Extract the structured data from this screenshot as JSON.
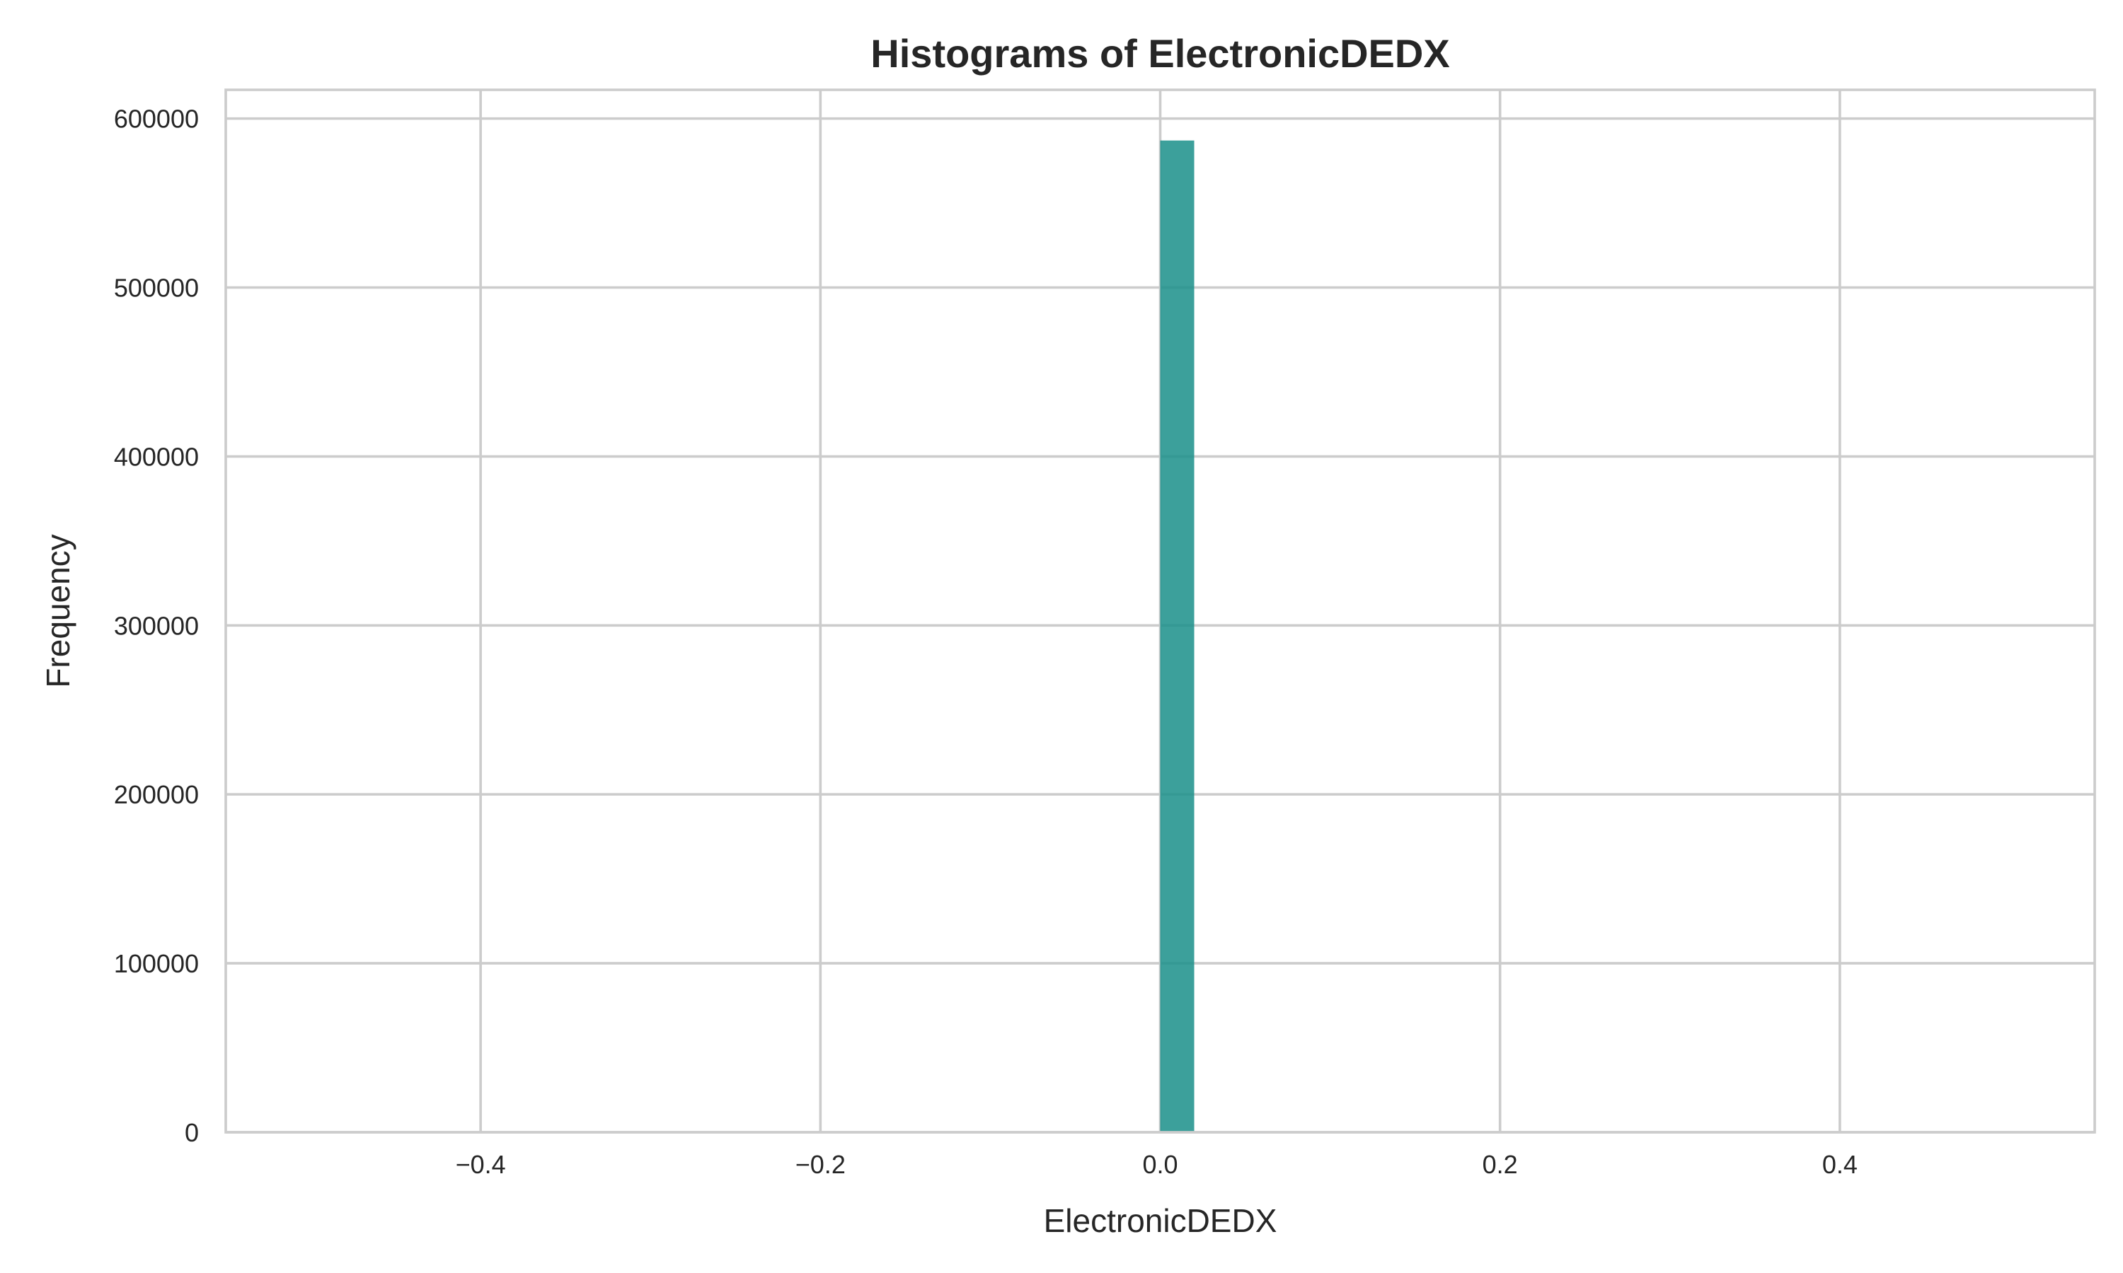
{
  "chart_data": {
    "type": "bar",
    "title": "Histograms of ElectronicDEDX",
    "xlabel": "ElectronicDEDX",
    "ylabel": "Frequency",
    "xlim": [
      -0.55,
      0.55
    ],
    "ylim": [
      0,
      617000
    ],
    "xticks": [
      -0.4,
      -0.2,
      0.0,
      0.2,
      0.4
    ],
    "xtick_labels": [
      "−0.4",
      "−0.2",
      "0.0",
      "0.2",
      "0.4"
    ],
    "yticks": [
      0,
      100000,
      200000,
      300000,
      400000,
      500000,
      600000
    ],
    "ytick_labels": [
      "0",
      "100000",
      "200000",
      "300000",
      "400000",
      "500000",
      "600000"
    ],
    "grid": true,
    "bins": [
      {
        "x0": 0.0,
        "x1": 0.02,
        "value": 587000
      }
    ],
    "colors": {
      "bar": "#1a8f8a",
      "bar_opacity": 0.85,
      "grid": "#cccccc",
      "text": "#262626"
    }
  }
}
